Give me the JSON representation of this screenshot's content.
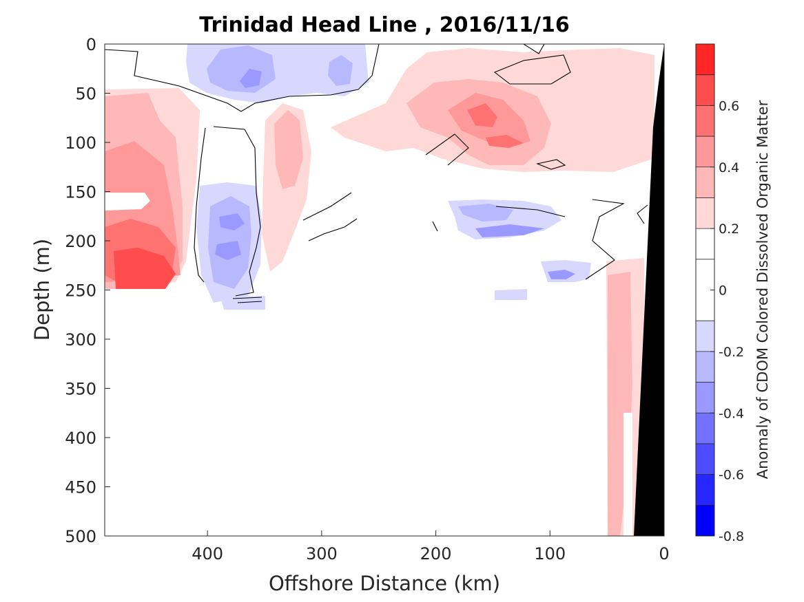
{
  "chart_data": {
    "type": "heatmap",
    "title": "Trinidad Head Line , 2016/11/16",
    "xlabel": "Offshore Distance (km)",
    "ylabel": "Depth (m)",
    "xlim": [
      490,
      0
    ],
    "ylim": [
      0,
      500
    ],
    "x_ticks": [
      400,
      300,
      200,
      100,
      0
    ],
    "y_ticks": [
      0,
      50,
      100,
      150,
      200,
      250,
      300,
      350,
      400,
      450,
      500
    ],
    "grid": false,
    "colorbar": {
      "label": "Anomaly of CDOM Colored Dissolved Organic Matter",
      "range": [
        -0.8,
        0.8
      ],
      "levels": [
        -0.8,
        -0.7,
        -0.6,
        -0.5,
        -0.4,
        -0.3,
        -0.2,
        -0.1,
        0.1,
        0.2,
        0.3,
        0.4,
        0.5,
        0.6,
        0.7,
        0.8
      ],
      "tick_values": [
        0.6,
        0.4,
        0.2,
        0,
        -0.2,
        -0.4,
        -0.6,
        -0.8
      ],
      "tick_labels": [
        "0.6",
        "0.4",
        "0.2",
        "0",
        "-0.2",
        "-0.4",
        "-0.6",
        "-0.8"
      ],
      "colors": [
        "#0000ff",
        "#2626ff",
        "#4d4dff",
        "#7272ff",
        "#9999ff",
        "#b8b8ff",
        "#d8d8ff",
        "#ffffff",
        "#ffffff",
        "#ffd8d8",
        "#ffb8b8",
        "#ff9999",
        "#ff7272",
        "#ff4d4d",
        "#ff2626",
        "#ff0000"
      ]
    },
    "zero_contour": true,
    "bathymetry_color": "#000000",
    "regions": [
      {
        "name": "offshore surface negative",
        "value": -0.2,
        "x": [
          405,
          270
        ],
        "depth": [
          0,
          60
        ]
      },
      {
        "name": "offshore surface core",
        "value": -0.3,
        "x": [
          390,
          340
        ],
        "depth": [
          15,
          45
        ]
      },
      {
        "name": "far offshore subsurface positive",
        "value": 0.3,
        "x": [
          490,
          420
        ],
        "depth": [
          60,
          250
        ]
      },
      {
        "name": "far offshore deep core",
        "value": 0.6,
        "x": [
          480,
          430
        ],
        "depth": [
          200,
          245
        ]
      },
      {
        "name": "column at 380 km negative",
        "value": -0.3,
        "x": [
          400,
          350
        ],
        "depth": [
          150,
          270
        ]
      },
      {
        "name": "mid-shelf positive",
        "value": 0.2,
        "x": [
          250,
          100
        ],
        "depth": [
          40,
          130
        ]
      },
      {
        "name": "mid-shelf core",
        "value": 0.4,
        "x": [
          180,
          120
        ],
        "depth": [
          60,
          110
        ]
      },
      {
        "name": "subsurface negative at 150 km",
        "value": -0.4,
        "x": [
          200,
          120
        ],
        "depth": [
          150,
          200
        ]
      },
      {
        "name": "subsurface negative at 100 km",
        "value": -0.4,
        "x": [
          110,
          60
        ],
        "depth": [
          220,
          250
        ]
      },
      {
        "name": "nearshore column positive",
        "value": 0.2,
        "x": [
          50,
          25
        ],
        "depth": [
          240,
          500
        ]
      }
    ]
  }
}
